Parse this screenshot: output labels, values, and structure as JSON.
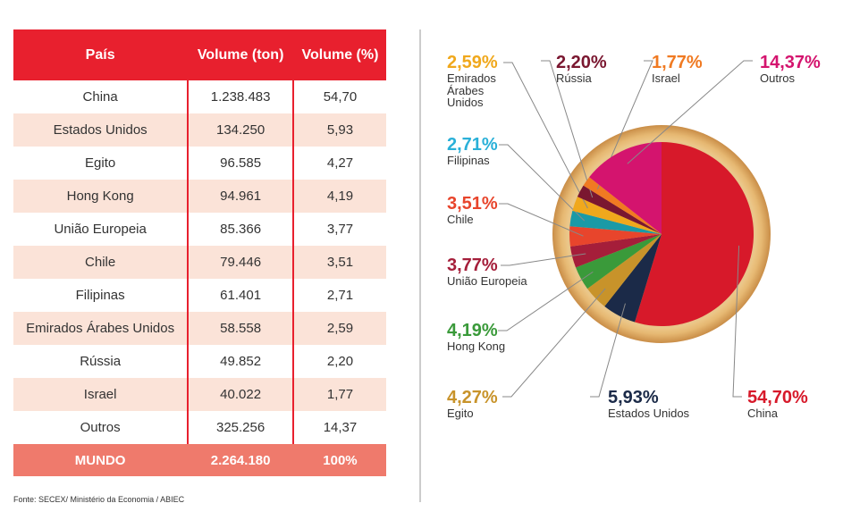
{
  "table": {
    "columns": [
      "País",
      "Volume (ton)",
      "Volume (%)"
    ],
    "rows": [
      [
        "China",
        "1.238.483",
        "54,70"
      ],
      [
        "Estados Unidos",
        "134.250",
        "5,93"
      ],
      [
        "Egito",
        "96.585",
        "4,27"
      ],
      [
        "Hong Kong",
        "94.961",
        "4,19"
      ],
      [
        "União Europeia",
        "85.366",
        "3,77"
      ],
      [
        "Chile",
        "79.446",
        "3,51"
      ],
      [
        "Filipinas",
        "61.401",
        "2,71"
      ],
      [
        "Emirados Árabes Unidos",
        "58.558",
        "2,59"
      ],
      [
        "Rússia",
        "49.852",
        "2,20"
      ],
      [
        "Israel",
        "40.022",
        "1,77"
      ],
      [
        "Outros",
        "325.256",
        "14,37"
      ]
    ],
    "total": [
      "MUNDO",
      "2.264.180",
      "100%"
    ],
    "source": "Fonte: SECEX/ Ministério da Economia / ABIEC"
  },
  "chart_data": {
    "type": "pie",
    "categories": [
      "China",
      "Estados Unidos",
      "Egito",
      "Hong Kong",
      "União Europeia",
      "Chile",
      "Filipinas",
      "Emirados Árabes Unidos",
      "Rússia",
      "Israel",
      "Outros"
    ],
    "values": [
      54.7,
      5.93,
      4.27,
      4.19,
      3.77,
      3.51,
      2.71,
      2.59,
      2.2,
      1.77,
      14.37
    ],
    "value_labels": [
      "54,70%",
      "5,93%",
      "4,27%",
      "4,19%",
      "3,77%",
      "3,51%",
      "2,71%",
      "2,59%",
      "2,20%",
      "1,77%",
      "14,37%"
    ],
    "colors": [
      "#d7192a",
      "#1b2a48",
      "#c8932a",
      "#3a9a3a",
      "#a51e3a",
      "#e8452c",
      "#1a9aa6",
      "#f0a81c",
      "#7a1730",
      "#f07a22",
      "#d4146e"
    ],
    "label_colors": [
      "#d7192a",
      "#1b2a48",
      "#c8932a",
      "#3a9a3a",
      "#a51e3a",
      "#e8452c",
      "#2ab0d8",
      "#f0a81c",
      "#7a1730",
      "#f07a22",
      "#d4146e"
    ]
  }
}
